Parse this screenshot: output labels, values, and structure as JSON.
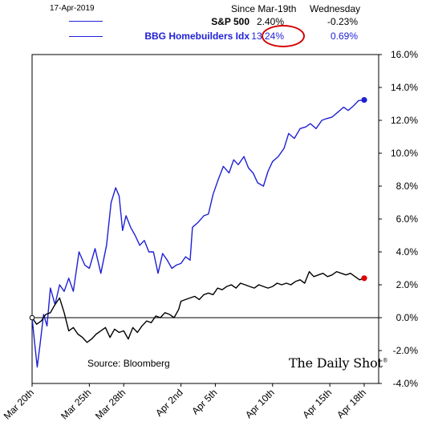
{
  "header": {
    "date": "17-Apr-2019",
    "col1": "Since Mar-19th",
    "col2": "Wednesday",
    "rows": [
      {
        "label": "S&P 500",
        "since": "2.40%",
        "day": "-0.23%",
        "color": "#000000"
      },
      {
        "label": "BBG Homebuilders Idx",
        "since": "13.24%",
        "day": "0.69%",
        "color": "#1f1fd6"
      }
    ]
  },
  "source": "Source: Bloomberg",
  "brand": {
    "name": "The Daily Shot",
    "mark": "®"
  },
  "colors": {
    "sp500": "#000000",
    "homebuilders": "#1f1fd6",
    "end_sp500": "#e00000",
    "end_homebuilders": "#1f1fd6",
    "circle": "#d40000"
  },
  "chart_data": {
    "type": "line",
    "x_ticks": [
      "Mar 20th",
      "Mar 25th",
      "Mar 28th",
      "Apr 2nd",
      "Apr 5th",
      "Apr 10th",
      "Apr 15th",
      "Apr 18th"
    ],
    "x_tick_positions": [
      0,
      5,
      8,
      13,
      16,
      21,
      26,
      29
    ],
    "xlim": [
      0,
      29
    ],
    "ylim": [
      -4,
      16
    ],
    "y_ticks": [
      "-4.0%",
      "-2.0%",
      "0.0%",
      "2.0%",
      "4.0%",
      "6.0%",
      "8.0%",
      "10.0%",
      "12.0%",
      "14.0%",
      "16.0%"
    ],
    "y_tick_values": [
      -4,
      -2,
      0,
      2,
      4,
      6,
      8,
      10,
      12,
      14,
      16
    ],
    "y_axis_side": "right",
    "grid": false,
    "series": [
      {
        "name": "BBG Homebuilders Idx",
        "points": [
          [
            0,
            0
          ],
          [
            0.2,
            -1.4
          ],
          [
            0.45,
            -3.0
          ],
          [
            0.7,
            -1.6
          ],
          [
            1.0,
            0.2
          ],
          [
            1.3,
            -0.5
          ],
          [
            1.6,
            1.8
          ],
          [
            2.0,
            0.8
          ],
          [
            2.4,
            2.0
          ],
          [
            2.8,
            1.6
          ],
          [
            3.2,
            2.4
          ],
          [
            3.6,
            1.6
          ],
          [
            4.1,
            4.0
          ],
          [
            4.6,
            3.2
          ],
          [
            5.0,
            3.0
          ],
          [
            5.5,
            4.2
          ],
          [
            6.0,
            2.7
          ],
          [
            6.5,
            4.4
          ],
          [
            6.9,
            7.0
          ],
          [
            7.3,
            7.9
          ],
          [
            7.6,
            7.4
          ],
          [
            7.9,
            5.3
          ],
          [
            8.2,
            6.2
          ],
          [
            8.6,
            5.5
          ],
          [
            9.0,
            5.0
          ],
          [
            9.4,
            4.4
          ],
          [
            9.8,
            4.7
          ],
          [
            10.2,
            4.0
          ],
          [
            10.6,
            4.0
          ],
          [
            11.0,
            2.7
          ],
          [
            11.4,
            3.9
          ],
          [
            11.8,
            3.5
          ],
          [
            12.2,
            3.0
          ],
          [
            12.6,
            3.2
          ],
          [
            13.0,
            3.3
          ],
          [
            13.4,
            3.7
          ],
          [
            13.8,
            3.5
          ],
          [
            14.0,
            5.5
          ],
          [
            14.5,
            5.8
          ],
          [
            15.0,
            6.2
          ],
          [
            15.4,
            6.3
          ],
          [
            15.8,
            7.5
          ],
          [
            16.2,
            8.3
          ],
          [
            16.7,
            9.2
          ],
          [
            17.2,
            8.8
          ],
          [
            17.6,
            9.6
          ],
          [
            18.0,
            9.3
          ],
          [
            18.5,
            9.8
          ],
          [
            18.9,
            9.1
          ],
          [
            19.3,
            8.8
          ],
          [
            19.7,
            8.2
          ],
          [
            20.2,
            8.0
          ],
          [
            20.6,
            8.9
          ],
          [
            21.0,
            9.5
          ],
          [
            21.5,
            9.8
          ],
          [
            22.0,
            10.3
          ],
          [
            22.4,
            11.2
          ],
          [
            22.9,
            10.9
          ],
          [
            23.4,
            11.5
          ],
          [
            23.9,
            11.6
          ],
          [
            24.3,
            11.8
          ],
          [
            24.8,
            11.5
          ],
          [
            25.3,
            12.0
          ],
          [
            25.7,
            12.1
          ],
          [
            26.2,
            12.2
          ],
          [
            26.7,
            12.5
          ],
          [
            27.2,
            12.8
          ],
          [
            27.6,
            12.6
          ],
          [
            28.1,
            12.9
          ],
          [
            28.5,
            13.2
          ],
          [
            29.0,
            13.24
          ]
        ]
      },
      {
        "name": "S&P 500",
        "points": [
          [
            0,
            0
          ],
          [
            0.4,
            -0.4
          ],
          [
            0.8,
            -0.2
          ],
          [
            1.2,
            0.2
          ],
          [
            1.6,
            0.3
          ],
          [
            2.0,
            0.8
          ],
          [
            2.4,
            1.2
          ],
          [
            2.8,
            0.3
          ],
          [
            3.2,
            -0.8
          ],
          [
            3.6,
            -0.6
          ],
          [
            4.0,
            -1.0
          ],
          [
            4.4,
            -1.2
          ],
          [
            4.8,
            -1.5
          ],
          [
            5.2,
            -1.3
          ],
          [
            5.6,
            -1.0
          ],
          [
            6.0,
            -0.8
          ],
          [
            6.4,
            -0.6
          ],
          [
            6.8,
            -1.2
          ],
          [
            7.2,
            -0.7
          ],
          [
            7.6,
            -0.9
          ],
          [
            8.0,
            -0.8
          ],
          [
            8.4,
            -1.3
          ],
          [
            8.8,
            -0.6
          ],
          [
            9.2,
            -0.9
          ],
          [
            9.6,
            -0.5
          ],
          [
            10.0,
            -0.2
          ],
          [
            10.4,
            -0.3
          ],
          [
            10.8,
            0.1
          ],
          [
            11.2,
            0.0
          ],
          [
            11.6,
            0.3
          ],
          [
            12.0,
            0.2
          ],
          [
            12.4,
            0.0
          ],
          [
            12.8,
            0.5
          ],
          [
            13.0,
            1.0
          ],
          [
            13.4,
            1.1
          ],
          [
            13.8,
            1.2
          ],
          [
            14.2,
            1.3
          ],
          [
            14.6,
            1.1
          ],
          [
            15.0,
            1.4
          ],
          [
            15.4,
            1.5
          ],
          [
            15.8,
            1.4
          ],
          [
            16.2,
            1.8
          ],
          [
            16.6,
            1.7
          ],
          [
            17.0,
            1.9
          ],
          [
            17.4,
            2.0
          ],
          [
            17.8,
            1.8
          ],
          [
            18.2,
            2.1
          ],
          [
            18.6,
            2.0
          ],
          [
            19.0,
            1.9
          ],
          [
            19.4,
            1.8
          ],
          [
            19.8,
            2.0
          ],
          [
            20.2,
            1.9
          ],
          [
            20.6,
            1.8
          ],
          [
            21.0,
            1.9
          ],
          [
            21.4,
            2.1
          ],
          [
            21.8,
            2.0
          ],
          [
            22.2,
            2.1
          ],
          [
            22.6,
            2.0
          ],
          [
            23.0,
            2.2
          ],
          [
            23.4,
            2.3
          ],
          [
            23.8,
            2.1
          ],
          [
            24.2,
            2.8
          ],
          [
            24.6,
            2.5
          ],
          [
            25.0,
            2.6
          ],
          [
            25.4,
            2.7
          ],
          [
            25.8,
            2.5
          ],
          [
            26.2,
            2.6
          ],
          [
            26.6,
            2.8
          ],
          [
            27.0,
            2.7
          ],
          [
            27.4,
            2.6
          ],
          [
            27.8,
            2.7
          ],
          [
            28.2,
            2.5
          ],
          [
            28.6,
            2.3
          ],
          [
            29.0,
            2.4
          ]
        ]
      }
    ]
  }
}
